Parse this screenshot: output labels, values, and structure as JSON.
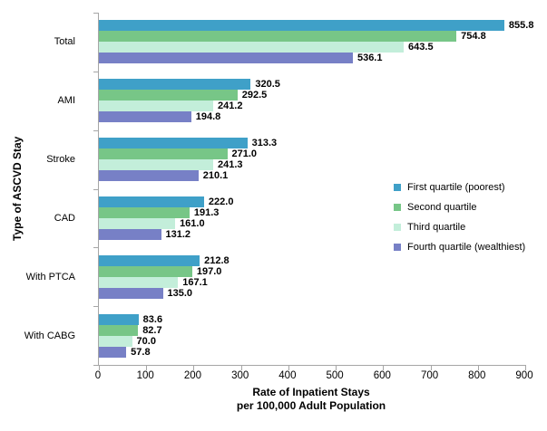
{
  "chart_data": {
    "type": "bar",
    "orientation": "horizontal",
    "title": "",
    "ylabel": "Type of ASCVD Stay",
    "xlabel": "Rate of Inpatient Stays per 100,000 Adult Population",
    "xlabel_lines": [
      "Rate of Inpatient Stays",
      "per 100,000  Adult Population"
    ],
    "categories": [
      "Total",
      "AMI",
      "Stroke",
      "CAD",
      "With PTCA",
      "With CABG"
    ],
    "series": [
      {
        "name": "First quartile (poorest)",
        "color": "#3FA0C8",
        "values": [
          855.8,
          320.5,
          313.3,
          222.0,
          212.8,
          83.6
        ]
      },
      {
        "name": "Second quartile",
        "color": "#77C687",
        "values": [
          754.8,
          292.5,
          271.0,
          191.3,
          197.0,
          82.7
        ]
      },
      {
        "name": "Third quartile",
        "color": "#C3EEDA",
        "values": [
          643.5,
          241.2,
          241.3,
          161.0,
          167.1,
          70.0
        ]
      },
      {
        "name": "Fourth quartile (wealthiest)",
        "color": "#7780C6",
        "values": [
          536.1,
          194.8,
          210.1,
          131.2,
          135.0,
          57.8
        ]
      }
    ],
    "xlim": [
      0,
      900
    ],
    "x_ticks": [
      0,
      100,
      200,
      300,
      400,
      500,
      600,
      700,
      800,
      900
    ],
    "grid": false,
    "value_labels": true,
    "value_label_decimals": 1,
    "legend_position": "right-middle",
    "axis_color": "#A6A6A6",
    "text_color": "#000000",
    "background_color": "#FFFFFF"
  }
}
